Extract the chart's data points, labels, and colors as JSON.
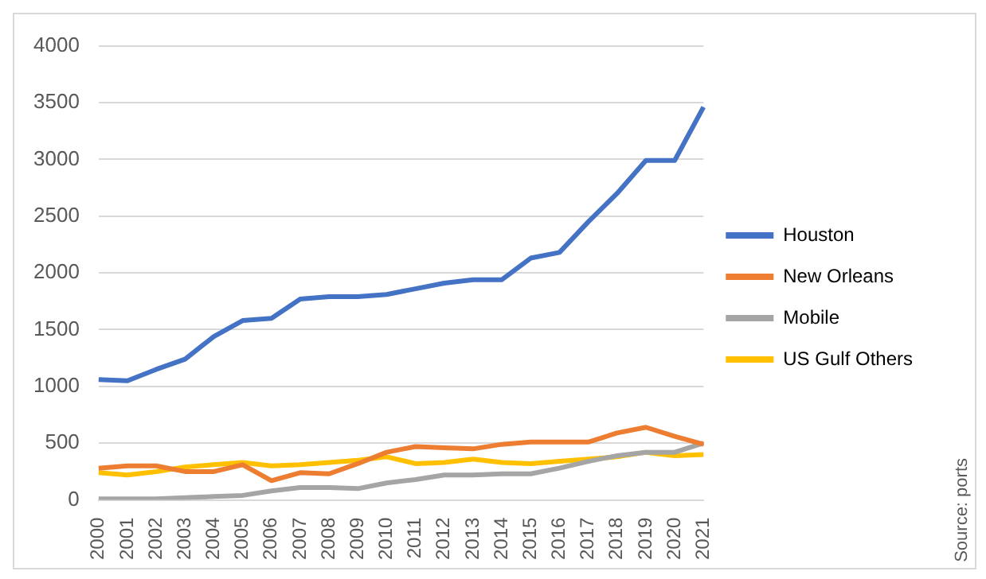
{
  "chart_data": {
    "type": "line",
    "categories": [
      "2000",
      "2001",
      "2002",
      "2003",
      "2004",
      "2005",
      "2006",
      "2007",
      "2008",
      "2009",
      "2010",
      "2011",
      "2012",
      "2013",
      "2014",
      "2015",
      "2016",
      "2017",
      "2018",
      "2019",
      "2020",
      "2021"
    ],
    "series": [
      {
        "name": "Houston",
        "color": "#4472c4",
        "values": [
          1060,
          1050,
          1150,
          1240,
          1440,
          1580,
          1600,
          1770,
          1790,
          1790,
          1810,
          1860,
          1910,
          1940,
          1940,
          2130,
          2180,
          2450,
          2700,
          2990,
          2990,
          3460
        ]
      },
      {
        "name": "New Orleans",
        "color": "#ed7d31",
        "values": [
          280,
          300,
          300,
          250,
          250,
          310,
          170,
          240,
          230,
          320,
          420,
          470,
          460,
          450,
          490,
          510,
          510,
          510,
          590,
          640,
          560,
          490
        ]
      },
      {
        "name": "Mobile",
        "color": "#a5a5a5",
        "values": [
          10,
          10,
          10,
          20,
          30,
          40,
          80,
          110,
          110,
          100,
          150,
          180,
          220,
          220,
          230,
          230,
          280,
          340,
          390,
          420,
          420,
          500
        ]
      },
      {
        "name": "US Gulf Others",
        "color": "#ffc000",
        "values": [
          240,
          220,
          250,
          290,
          310,
          330,
          300,
          310,
          330,
          350,
          380,
          320,
          330,
          360,
          330,
          320,
          340,
          360,
          380,
          420,
          390,
          400
        ]
      }
    ],
    "ylim": [
      0,
      4000
    ],
    "yticks": [
      0,
      500,
      1000,
      1500,
      2000,
      2500,
      3000,
      3500,
      4000
    ],
    "grid": "y",
    "legend": "right",
    "marker": "none",
    "line_style": "solid",
    "annotations": [
      "Source: ports"
    ]
  }
}
